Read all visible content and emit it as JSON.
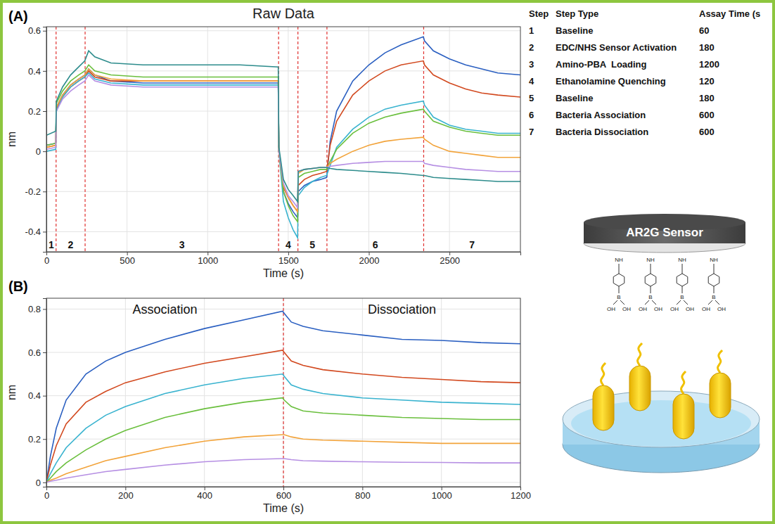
{
  "chart_data": [
    {
      "type": "line",
      "title": "Raw Data",
      "panel_label": "(A)",
      "x_label": "Time (s)",
      "y_label": "nm",
      "x": [
        0,
        58,
        62,
        100,
        150,
        200,
        238,
        262,
        300,
        400,
        600,
        900,
        1200,
        1438,
        1442,
        1470,
        1500,
        1530,
        1558,
        1562,
        1600,
        1650,
        1700,
        1738,
        1760,
        1800,
        1900,
        2000,
        2100,
        2200,
        2338,
        2345,
        2400,
        2500,
        2600,
        2700,
        2800,
        2940
      ],
      "series": [
        {
          "color": "#2a5fc1",
          "values": [
            0.03,
            0.04,
            0.22,
            0.28,
            0.33,
            0.36,
            0.38,
            0.41,
            0.38,
            0.35,
            0.34,
            0.34,
            0.34,
            0.34,
            0.0,
            -0.2,
            -0.26,
            -0.3,
            -0.33,
            -0.2,
            -0.17,
            -0.15,
            -0.14,
            -0.13,
            0.05,
            0.2,
            0.35,
            0.43,
            0.49,
            0.53,
            0.57,
            0.55,
            0.5,
            0.46,
            0.43,
            0.41,
            0.39,
            0.38
          ]
        },
        {
          "color": "#d2491f",
          "values": [
            0.02,
            0.03,
            0.21,
            0.27,
            0.32,
            0.35,
            0.37,
            0.4,
            0.37,
            0.35,
            0.35,
            0.35,
            0.35,
            0.35,
            0.0,
            -0.18,
            -0.23,
            -0.27,
            -0.3,
            -0.17,
            -0.14,
            -0.12,
            -0.11,
            -0.1,
            0.03,
            0.15,
            0.28,
            0.35,
            0.4,
            0.43,
            0.45,
            0.43,
            0.38,
            0.34,
            0.31,
            0.29,
            0.28,
            0.27
          ]
        },
        {
          "color": "#39b3cf",
          "values": [
            0.0,
            0.01,
            0.2,
            0.27,
            0.32,
            0.35,
            0.37,
            0.39,
            0.36,
            0.34,
            0.33,
            0.33,
            0.33,
            0.33,
            0.0,
            -0.25,
            -0.33,
            -0.39,
            -0.43,
            -0.22,
            -0.18,
            -0.15,
            -0.13,
            -0.12,
            -0.07,
            0.02,
            0.11,
            0.17,
            0.21,
            0.23,
            0.25,
            0.23,
            0.17,
            0.13,
            0.11,
            0.1,
            0.09,
            0.09
          ]
        },
        {
          "color": "#6abf3d",
          "values": [
            0.03,
            0.04,
            0.24,
            0.3,
            0.35,
            0.38,
            0.4,
            0.43,
            0.4,
            0.38,
            0.37,
            0.37,
            0.37,
            0.37,
            0.0,
            -0.2,
            -0.27,
            -0.32,
            -0.35,
            -0.13,
            -0.11,
            -0.1,
            -0.09,
            -0.09,
            -0.05,
            0.01,
            0.09,
            0.14,
            0.17,
            0.19,
            0.21,
            0.2,
            0.15,
            0.12,
            0.1,
            0.09,
            0.08,
            0.08
          ]
        },
        {
          "color": "#f2a33a",
          "values": [
            0.02,
            0.03,
            0.22,
            0.28,
            0.33,
            0.36,
            0.38,
            0.41,
            0.38,
            0.36,
            0.35,
            0.35,
            0.35,
            0.35,
            0.0,
            -0.17,
            -0.23,
            -0.27,
            -0.3,
            -0.11,
            -0.09,
            -0.085,
            -0.08,
            -0.08,
            -0.06,
            -0.04,
            0.0,
            0.03,
            0.05,
            0.06,
            0.07,
            0.06,
            0.03,
            0.0,
            -0.01,
            -0.02,
            -0.03,
            -0.03
          ]
        },
        {
          "color": "#b68fe3",
          "values": [
            0.01,
            0.02,
            0.2,
            0.26,
            0.3,
            0.33,
            0.35,
            0.38,
            0.35,
            0.33,
            0.32,
            0.32,
            0.32,
            0.32,
            0.0,
            -0.16,
            -0.22,
            -0.25,
            -0.28,
            -0.1,
            -0.09,
            -0.085,
            -0.08,
            -0.08,
            -0.075,
            -0.07,
            -0.06,
            -0.055,
            -0.05,
            -0.05,
            -0.05,
            -0.06,
            -0.07,
            -0.08,
            -0.09,
            -0.095,
            -0.1,
            -0.1
          ]
        },
        {
          "color": "#2d8c8c",
          "values": [
            0.08,
            0.1,
            0.25,
            0.32,
            0.38,
            0.42,
            0.45,
            0.5,
            0.47,
            0.44,
            0.43,
            0.43,
            0.43,
            0.42,
            0.02,
            -0.14,
            -0.19,
            -0.22,
            -0.25,
            -0.1,
            -0.09,
            -0.085,
            -0.08,
            -0.08,
            -0.085,
            -0.09,
            -0.095,
            -0.1,
            -0.105,
            -0.11,
            -0.12,
            -0.12,
            -0.13,
            -0.135,
            -0.14,
            -0.145,
            -0.15,
            -0.15
          ]
        }
      ],
      "xlim": [
        0,
        2940
      ],
      "ylim": [
        -0.5,
        0.62
      ],
      "xticks": [
        0,
        500,
        1000,
        1500,
        2000,
        2500
      ],
      "yticks": [
        -0.4,
        -0.2,
        0,
        0.2,
        0.4,
        0.6
      ],
      "grid": true,
      "dividers": [
        60,
        240,
        1440,
        1560,
        1740,
        2340
      ],
      "region_labels": [
        "1",
        "2",
        "3",
        "4",
        "5",
        "6",
        "7"
      ]
    },
    {
      "type": "line",
      "panel_label": "(B)",
      "x_label": "Time (s)",
      "y_label": "nm",
      "annotations": [
        "Association",
        "Dissociation"
      ],
      "x": [
        0,
        10,
        25,
        50,
        100,
        150,
        200,
        300,
        400,
        500,
        598,
        602,
        620,
        650,
        700,
        800,
        900,
        1000,
        1100,
        1200
      ],
      "series": [
        {
          "color": "#2a5fc1",
          "values": [
            0,
            0.12,
            0.25,
            0.38,
            0.5,
            0.56,
            0.6,
            0.66,
            0.71,
            0.75,
            0.79,
            0.78,
            0.74,
            0.72,
            0.7,
            0.68,
            0.66,
            0.655,
            0.645,
            0.64
          ]
        },
        {
          "color": "#d2491f",
          "values": [
            0,
            0.08,
            0.17,
            0.27,
            0.37,
            0.42,
            0.46,
            0.51,
            0.55,
            0.58,
            0.61,
            0.6,
            0.56,
            0.54,
            0.52,
            0.5,
            0.485,
            0.475,
            0.465,
            0.46
          ]
        },
        {
          "color": "#39b3cf",
          "values": [
            0,
            0.04,
            0.09,
            0.16,
            0.25,
            0.31,
            0.35,
            0.41,
            0.45,
            0.48,
            0.5,
            0.49,
            0.45,
            0.43,
            0.41,
            0.39,
            0.38,
            0.37,
            0.365,
            0.36
          ]
        },
        {
          "color": "#6abf3d",
          "values": [
            0,
            0.02,
            0.05,
            0.09,
            0.15,
            0.2,
            0.24,
            0.3,
            0.34,
            0.37,
            0.39,
            0.38,
            0.35,
            0.33,
            0.32,
            0.31,
            0.3,
            0.295,
            0.29,
            0.29
          ]
        },
        {
          "color": "#f2a33a",
          "values": [
            0,
            0.01,
            0.02,
            0.04,
            0.07,
            0.1,
            0.12,
            0.16,
            0.19,
            0.21,
            0.22,
            0.22,
            0.21,
            0.2,
            0.195,
            0.19,
            0.185,
            0.18,
            0.18,
            0.18
          ]
        },
        {
          "color": "#b68fe3",
          "values": [
            0,
            0.005,
            0.01,
            0.02,
            0.035,
            0.05,
            0.06,
            0.08,
            0.095,
            0.105,
            0.11,
            0.11,
            0.105,
            0.1,
            0.098,
            0.095,
            0.093,
            0.092,
            0.09,
            0.09
          ]
        }
      ],
      "xlim": [
        0,
        1200
      ],
      "ylim": [
        -0.02,
        0.85
      ],
      "xticks": [
        0,
        200,
        400,
        600,
        800,
        1000,
        1200
      ],
      "yticks": [
        0,
        0.2,
        0.4,
        0.6,
        0.8
      ],
      "grid": true,
      "dividers": [
        600
      ]
    }
  ],
  "steps_table": {
    "header": [
      "Step",
      "Step Type",
      "Assay Time (s"
    ],
    "rows": [
      [
        1,
        "Baseline",
        60
      ],
      [
        2,
        "EDC/NHS Sensor Activation",
        180
      ],
      [
        3,
        "Amino-PBA  Loading",
        1200
      ],
      [
        4,
        "Ethanolamine Quenching",
        120
      ],
      [
        5,
        "Baseline",
        180
      ],
      [
        6,
        "Bacteria Association",
        600
      ],
      [
        7,
        "Bacteria Dissociation",
        600
      ]
    ]
  },
  "diagram": {
    "sensor_label": "AR2G Sensor",
    "pba_labels": [
      "NH",
      "B",
      "OH",
      "OH"
    ]
  }
}
